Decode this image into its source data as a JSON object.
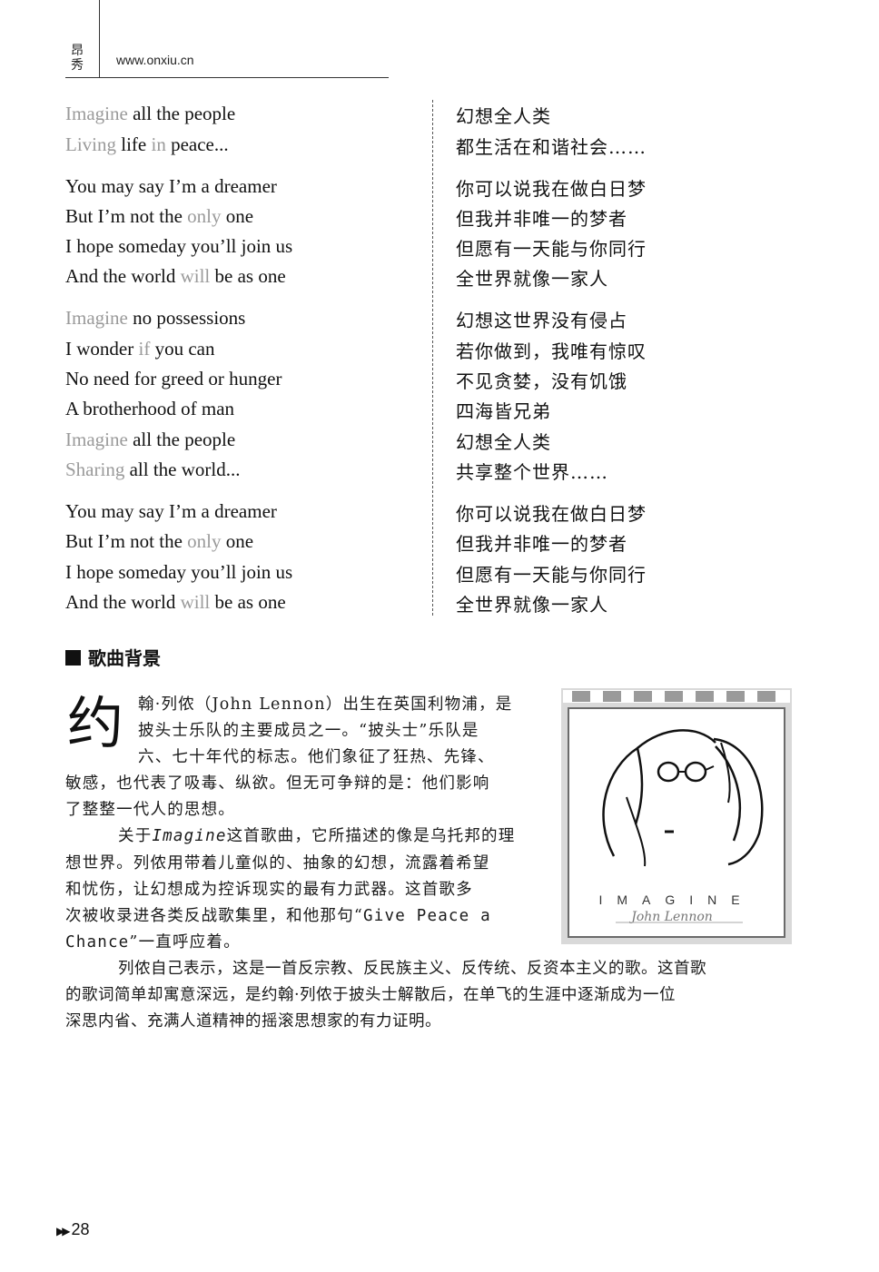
{
  "header": {
    "logo_text": "昂秀",
    "url": "www.onxiu.cn"
  },
  "lyrics_en": [
    [
      [
        "Imagine",
        true
      ],
      [
        " all the people",
        false
      ]
    ],
    [
      [
        "Living",
        true
      ],
      [
        " life ",
        false
      ],
      [
        "in",
        true
      ],
      [
        " peace...",
        false
      ]
    ],
    [
      [
        "You may say I’m a dreamer",
        false
      ]
    ],
    [
      [
        "But I’m not the ",
        false
      ],
      [
        "only",
        true
      ],
      [
        " one",
        false
      ]
    ],
    [
      [
        "I hope someday you’ll join us",
        false
      ]
    ],
    [
      [
        "And the world ",
        false
      ],
      [
        "will",
        true
      ],
      [
        " be as one",
        false
      ]
    ],
    [
      [
        "Imagine",
        true
      ],
      [
        " no possessions",
        false
      ]
    ],
    [
      [
        "I wonder ",
        false
      ],
      [
        "if",
        true
      ],
      [
        " you can",
        false
      ]
    ],
    [
      [
        "No need for greed or hunger",
        false
      ]
    ],
    [
      [
        "A brotherhood of man",
        false
      ]
    ],
    [
      [
        "Imagine",
        true
      ],
      [
        " all the people",
        false
      ]
    ],
    [
      [
        "Sharing",
        true
      ],
      [
        " all the world...",
        false
      ]
    ],
    [
      [
        "You may say I’m a dreamer",
        false
      ]
    ],
    [
      [
        "But I’m not the ",
        false
      ],
      [
        "only",
        true
      ],
      [
        " one",
        false
      ]
    ],
    [
      [
        "I hope someday you’ll join us",
        false
      ]
    ],
    [
      [
        "And the world ",
        false
      ],
      [
        "will",
        true
      ],
      [
        " be as one",
        false
      ]
    ]
  ],
  "lyrics_cn": [
    "幻想全人类",
    "都生活在和谐社会……",
    "你可以说我在做白日梦",
    "但我并非唯一的梦者",
    "但愿有一天能与你同行",
    "全世界就像一家人",
    "幻想这世界没有侵占",
    "若你做到，我唯有惊叹",
    "不见贪婪，没有饥饿",
    "四海皆兄弟",
    "幻想全人类",
    "共享整个世界……",
    "你可以说我在做白日梦",
    "但我并非唯一的梦者",
    "但愿有一天能与你同行",
    "全世界就像一家人"
  ],
  "section": {
    "title": "歌曲背景",
    "drop_cap": "约",
    "p1_lines": [
      "翰·列侬（John Lennon）出生在英国利物浦，是",
      "披头士乐队的主要成员之一。“披头士”乐队是",
      "六、七十年代的标志。他们象征了狂热、先锋、",
      "敏感，也代表了吸毒、纵欲。但无可争辩的是：他们影响",
      "了整整一代人的思想。"
    ],
    "p2_start": "关于",
    "p2_title": "Imagine",
    "p2_rest": "这首歌曲，它所描述的像是乌托邦的理",
    "p2_lines": [
      "想世界。列侬用带着儿童似的、抽象的幻想，流露着希望",
      "和忧伤，让幻想成为控诉现实的最有力武器。这首歌多"
    ],
    "p2_l4a": "次被收录进各类反战歌集里，和他那句“",
    "p2_quote_a": "Give Peace a",
    "p2_quote_b": "Chance",
    "p2_l5b": "”一直呼应着。",
    "p3_lines": [
      "列侬自己表示，这是一首反宗教、反民族主义、反传统、反资本主义的歌。这首歌",
      "的歌词简单却寓意深远，是约翰·列侬于披头士解散后，在单飞的生涯中逐渐成为一位",
      "深思内省、充满人道精神的摇滚思想家的有力证明。"
    ]
  },
  "album": {
    "title": "IMAGINE",
    "signature": "John Lennon"
  },
  "page_number": "28"
}
